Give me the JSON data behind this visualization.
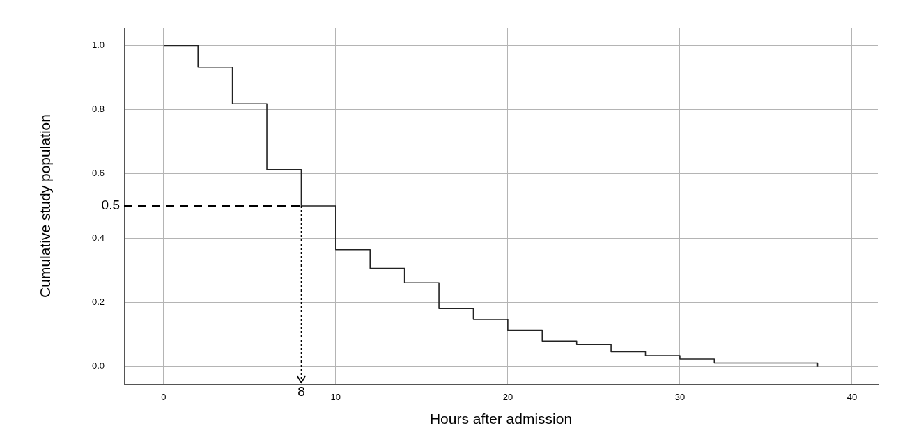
{
  "chart_data": {
    "type": "step",
    "xlabel": "Hours after admission",
    "ylabel": "Cumulative study population",
    "x": [
      0,
      2,
      4,
      6,
      8,
      10,
      12,
      14,
      16,
      18,
      20,
      22,
      24,
      26,
      28,
      30,
      32,
      38
    ],
    "series": [
      {
        "color": "#222222",
        "values": [
          1.0,
          0.932,
          0.818,
          0.613,
          0.5,
          0.364,
          0.306,
          0.261,
          0.181,
          0.147,
          0.113,
          0.079,
          0.068,
          0.046,
          0.034,
          0.023,
          0.011,
          0.0
        ]
      }
    ],
    "xlim": [
      -2.3,
      41.5
    ],
    "ylim": [
      -0.055,
      1.055
    ],
    "xticks": [
      0,
      10,
      20,
      30,
      40
    ],
    "yticks": [
      {
        "value": 0,
        "label": "0.0"
      },
      0.2,
      0.4,
      0.6,
      0.8,
      {
        "value": 1,
        "label": "1.0"
      }
    ],
    "ref_lines": [
      {
        "axis": "y",
        "value": 0.5,
        "label": "0.5",
        "line_style": "dashed",
        "color": "#000000"
      },
      {
        "axis": "x",
        "value": 8,
        "label": "8",
        "line_style": "dotted",
        "color": "#000000"
      }
    ],
    "grid": true,
    "legend": false,
    "marker": "none",
    "line_style": "solid"
  }
}
